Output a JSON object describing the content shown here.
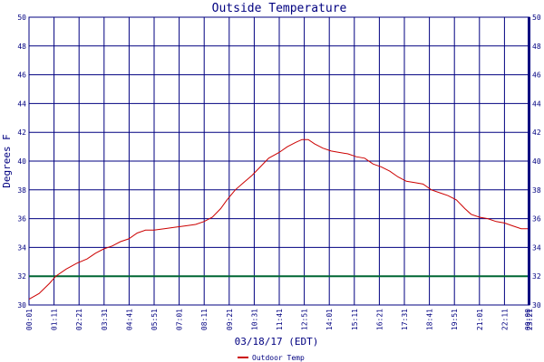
{
  "chart_data": {
    "type": "line",
    "title": "Outside Temperature",
    "ylabel": "Degrees F",
    "xlabel": "03/18/17 (EDT)",
    "ylim": [
      30,
      50
    ],
    "y_ticks": [
      30,
      32,
      34,
      36,
      38,
      40,
      42,
      44,
      46,
      48,
      50
    ],
    "x_ticks": [
      "00:01",
      "01:11",
      "02:21",
      "03:31",
      "04:41",
      "05:51",
      "07:01",
      "08:11",
      "09:21",
      "10:31",
      "11:41",
      "12:51",
      "14:01",
      "15:11",
      "16:21",
      "17:31",
      "18:41",
      "19:51",
      "21:01",
      "22:11",
      "23:21",
      "00:00"
    ],
    "x_range_hours": [
      0.0167,
      24.0
    ],
    "grid": true,
    "reference_line": {
      "value": 32,
      "color": "#006633"
    },
    "legend": {
      "position": "bottom-center",
      "entries": [
        "Outdoor Temp"
      ]
    },
    "series": [
      {
        "name": "Outdoor Temp",
        "color": "#cc0000",
        "x": [
          0.02,
          0.5,
          1.0,
          1.3,
          1.8,
          2.3,
          2.8,
          3.2,
          3.6,
          4.0,
          4.4,
          4.8,
          5.2,
          5.6,
          6.0,
          6.5,
          7.0,
          7.5,
          8.0,
          8.4,
          8.8,
          9.2,
          9.5,
          9.9,
          10.3,
          10.7,
          11.1,
          11.5,
          12.0,
          12.4,
          12.8,
          13.1,
          13.4,
          13.7,
          14.1,
          14.5,
          14.9,
          15.3,
          15.7,
          16.1,
          16.5,
          16.9,
          17.3,
          17.7,
          18.1,
          18.5,
          18.9,
          19.3,
          19.7,
          20.1,
          20.5,
          20.9,
          21.2,
          21.6,
          22.0,
          22.4,
          22.8,
          23.2,
          23.6,
          24.0
        ],
        "values": [
          30.4,
          30.8,
          31.5,
          32.0,
          32.5,
          32.9,
          33.2,
          33.6,
          33.9,
          34.1,
          34.4,
          34.6,
          35.0,
          35.2,
          35.2,
          35.3,
          35.4,
          35.5,
          35.6,
          35.8,
          36.1,
          36.7,
          37.3,
          38.0,
          38.5,
          39.0,
          39.6,
          40.2,
          40.6,
          41.0,
          41.3,
          41.5,
          41.5,
          41.2,
          40.9,
          40.7,
          40.6,
          40.5,
          40.3,
          40.2,
          39.8,
          39.6,
          39.3,
          38.9,
          38.6,
          38.5,
          38.4,
          38.0,
          37.8,
          37.6,
          37.3,
          36.7,
          36.3,
          36.1,
          36.0,
          35.8,
          35.7,
          35.5,
          35.3,
          35.3
        ]
      }
    ]
  }
}
